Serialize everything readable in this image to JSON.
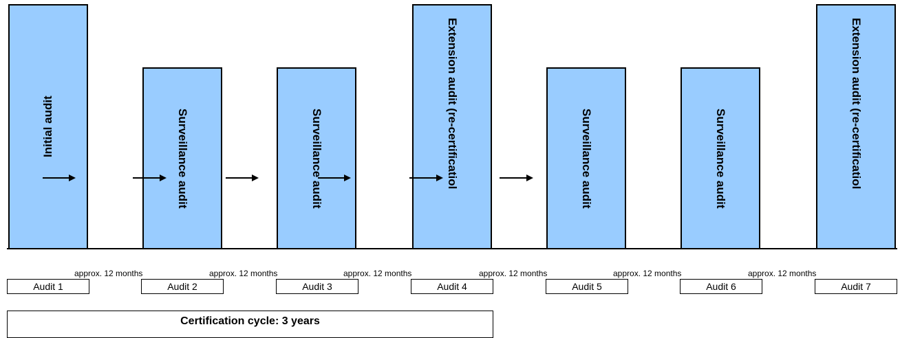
{
  "bars": [
    {
      "label": "Initial audit"
    },
    {
      "label": "Surveillance audit"
    },
    {
      "label": "Surveillance audit"
    },
    {
      "label": "Extension audit (re-certificatiol"
    },
    {
      "label": "Surveillance audit"
    },
    {
      "label": "Surveillance audit"
    },
    {
      "label": "Extension audit (re-certificatiol"
    }
  ],
  "intervals": [
    "approx. 12 months",
    "approx. 12 months",
    "approx. 12 months",
    "approx. 12 months",
    "approx. 12 months",
    "approx. 12 months"
  ],
  "audits": [
    "Audit 1",
    "Audit 2",
    "Audit 3",
    "Audit 4",
    "Audit 5",
    "Audit 6",
    "Audit 7"
  ],
  "cycle": {
    "label": "Certification cycle: 3 years"
  },
  "colors": {
    "bar_fill": "#99ccff",
    "outline": "#000000"
  }
}
